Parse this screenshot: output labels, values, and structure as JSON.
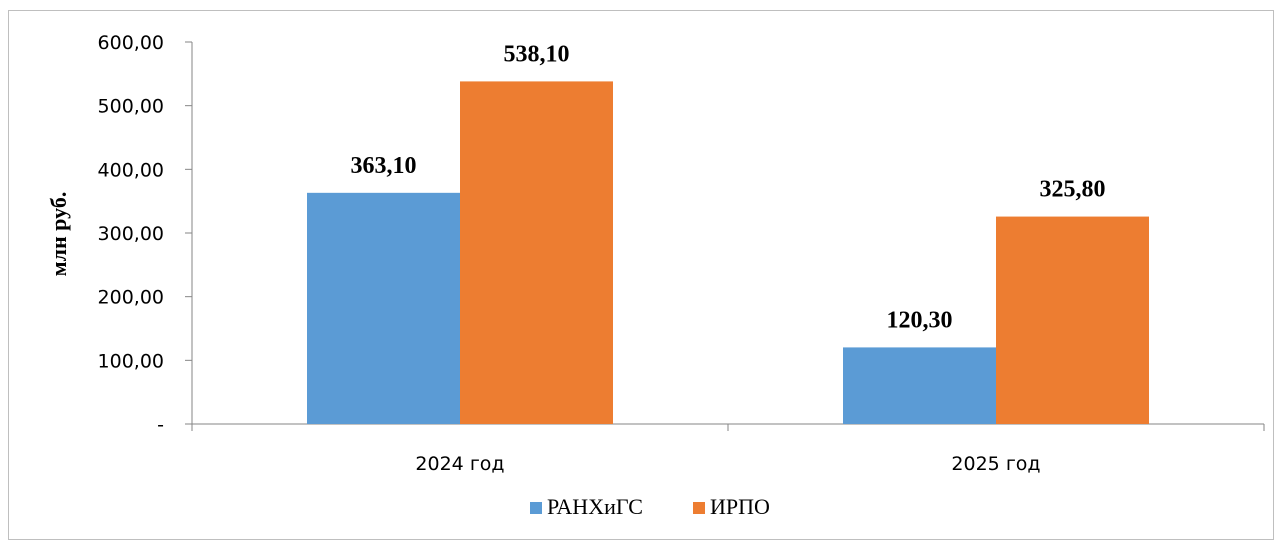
{
  "chart_data": {
    "type": "bar",
    "categories": [
      "2024 год",
      "2025 год"
    ],
    "series": [
      {
        "name": "РАНХиГС",
        "values": [
          363.1,
          120.3
        ],
        "labels": [
          "363,10",
          "120,30"
        ],
        "color": "#5b9bd5"
      },
      {
        "name": "ИРПО",
        "values": [
          538.1,
          325.8
        ],
        "labels": [
          "538,10",
          "325,80"
        ],
        "color": "#ed7d31"
      }
    ],
    "ylabel": "млн руб.",
    "xlabel": "",
    "ylim": [
      0,
      600
    ],
    "yticks": [
      {
        "value": 0,
        "label": "-"
      },
      {
        "value": 100,
        "label": "100,00"
      },
      {
        "value": 200,
        "label": "200,00"
      },
      {
        "value": 300,
        "label": "300,00"
      },
      {
        "value": 400,
        "label": "400,00"
      },
      {
        "value": 500,
        "label": "500,00"
      },
      {
        "value": 600,
        "label": "600,00"
      }
    ],
    "grid": false,
    "legend": "bottom"
  }
}
